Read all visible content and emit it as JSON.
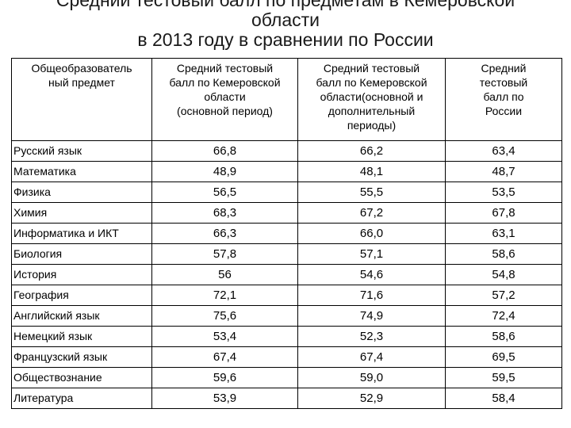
{
  "title": {
    "line1": "Средний тестовый балл по предметам в Кемеровской",
    "line2": "области",
    "line3": "в 2013 году в сравнении по России"
  },
  "table": {
    "headers": [
      "Общеобразователь\nный предмет",
      "Средний тестовый\nбалл по Кемеровской\nобласти\n(основной период)",
      "Средний тестовый\nбалл по Кемеровской\nобласти(основной и\nдополнительный\nпериоды)",
      "Средний\nтестовый\nбалл по\nРоссии"
    ],
    "rows": [
      {
        "subject": "Русский язык",
        "main": "66,8",
        "all": "66,2",
        "russia": "63,4"
      },
      {
        "subject": "Математика",
        "main": "48,9",
        "all": "48,1",
        "russia": "48,7"
      },
      {
        "subject": "Физика",
        "main": "56,5",
        "all": "55,5",
        "russia": "53,5"
      },
      {
        "subject": "Химия",
        "main": "68,3",
        "all": "67,2",
        "russia": "67,8"
      },
      {
        "subject": "Информатика и ИКТ",
        "main": "66,3",
        "all": "66,0",
        "russia": "63,1"
      },
      {
        "subject": "Биология",
        "main": "57,8",
        "all": "57,1",
        "russia": "58,6"
      },
      {
        "subject": "История",
        "main": "56",
        "all": "54,6",
        "russia": "54,8"
      },
      {
        "subject": "География",
        "main": "72,1",
        "all": "71,6",
        "russia": "57,2"
      },
      {
        "subject": "Английский язык",
        "main": "75,6",
        "all": "74,9",
        "russia": "72,4"
      },
      {
        "subject": "Немецкий язык",
        "main": "53,4",
        "all": "52,3",
        "russia": "58,6"
      },
      {
        "subject": "Французский язык",
        "main": "67,4",
        "all": "67,4",
        "russia": "69,5"
      },
      {
        "subject": "Обществознание",
        "main": "59,6",
        "all": "59,0",
        "russia": "59,5"
      },
      {
        "subject": "Литература",
        "main": "53,9",
        "all": "52,9",
        "russia": "58,4"
      }
    ]
  }
}
